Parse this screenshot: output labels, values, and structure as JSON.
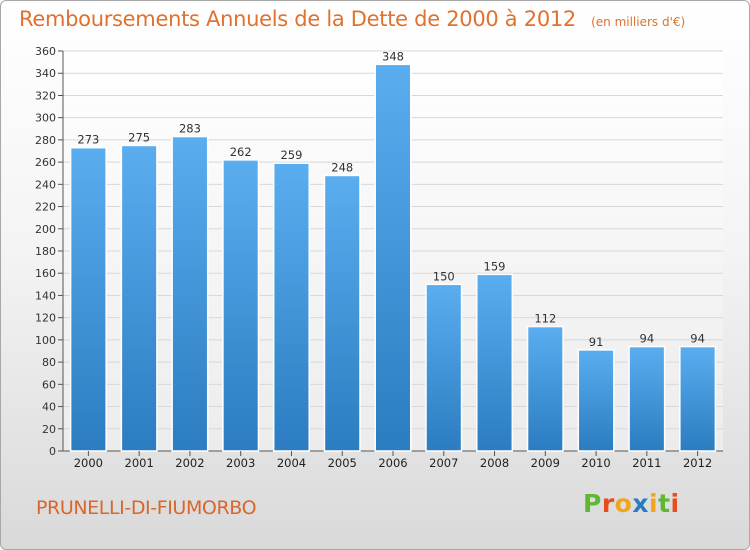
{
  "chart": {
    "title": "Remboursements Annuels de la Dette de 2000 à 2012",
    "unit": "(en milliers d'€)",
    "commune": "PRUNELLI-DI-FIUMORBO",
    "logo_text": "Proxiti",
    "logo_colors": [
      "#5fb832",
      "#e84b1c",
      "#f2a51a",
      "#2b7bc4",
      "#f2a51a",
      "#5fb832",
      "#e84b1c"
    ],
    "bar_color": "#3a8fd6",
    "title_color": "#e0712e"
  },
  "chart_data": {
    "type": "bar",
    "title": "Remboursements Annuels de la Dette de 2000 à 2012",
    "subtitle": "(en milliers d'€)",
    "categories": [
      "2000",
      "2001",
      "2002",
      "2003",
      "2004",
      "2005",
      "2006",
      "2007",
      "2008",
      "2009",
      "2010",
      "2011",
      "2012"
    ],
    "values": [
      273,
      275,
      283,
      262,
      259,
      248,
      348,
      150,
      159,
      112,
      91,
      94,
      94
    ],
    "ylim": [
      0,
      360
    ],
    "yticks": [
      0,
      20,
      40,
      60,
      80,
      100,
      120,
      140,
      160,
      180,
      200,
      220,
      240,
      260,
      280,
      300,
      320,
      340,
      360
    ],
    "grid": true,
    "xlabel": "",
    "ylabel": ""
  }
}
